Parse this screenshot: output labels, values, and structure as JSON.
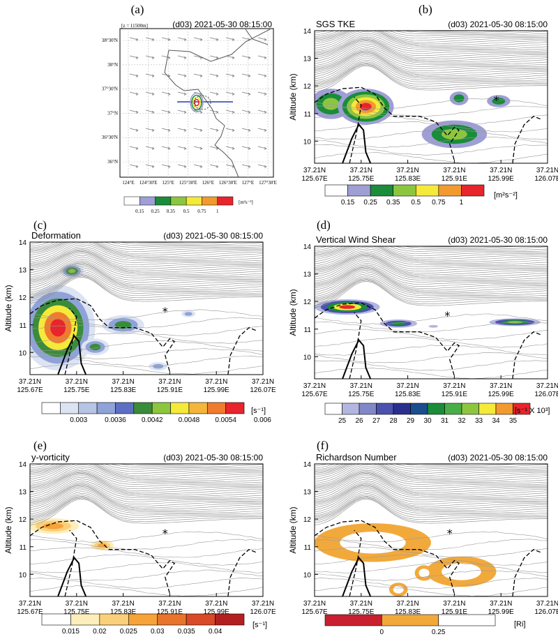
{
  "chart_data": [
    {
      "panel": "(a)",
      "type": "map",
      "header_left": "[z = 11500m]",
      "header_right": "(d03) 2021-05-30 08:15:00",
      "lon_ticks": [
        "124°E",
        "124°30'E",
        "125°E",
        "125°30'E",
        "126°E",
        "126°30'E",
        "127°E",
        "127°30'E"
      ],
      "lat_ticks": [
        "38°30'N",
        "38°N",
        "37°30'N",
        "37°N",
        "36°30'N",
        "36°N"
      ],
      "colorbar": {
        "labels": [
          "0.15",
          "0.25",
          "0.35",
          "0.5",
          "0.75",
          "1"
        ],
        "colors": [
          "#ffffff",
          "#9f9fd6",
          "#1a8c3a",
          "#8cc63f",
          "#f5e93a",
          "#f39a2e",
          "#e8242c"
        ],
        "units": "[m²s⁻²]"
      }
    },
    {
      "panel": "(b)",
      "type": "heatmap",
      "title": "SGS TKE",
      "timestamp": "(d03) 2021-05-30 08:15:00",
      "ylabel": "Altitude (km)",
      "ylim": [
        9.2,
        14
      ],
      "y_ticks": [
        "10",
        "11",
        "12",
        "13",
        "14"
      ],
      "x_ticks": [
        [
          "37.21N",
          "125.67E"
        ],
        [
          "37.21N",
          "125.75E"
        ],
        [
          "37.21N",
          "125.83E"
        ],
        [
          "37.21N",
          "125.91E"
        ],
        [
          "37.21N",
          "125.99E"
        ],
        [
          "37.21N",
          "126.07E"
        ]
      ],
      "marker": {
        "x": 0.78,
        "y": 11.5,
        "symbol": "*"
      },
      "colorbar": {
        "labels": [
          "0.15",
          "0.25",
          "0.35",
          "0.5",
          "0.75",
          "1"
        ],
        "colors": [
          "#ffffff",
          "#9f9fd6",
          "#1a8c3a",
          "#8cc63f",
          "#f5e93a",
          "#f39a2e",
          "#e8242c"
        ],
        "units": "[m²s⁻²]"
      },
      "blobs": [
        {
          "x": 0.07,
          "y": 11.35,
          "rx": 0.09,
          "ry": 0.55,
          "levels": [
            1,
            2,
            3
          ]
        },
        {
          "x": 0.22,
          "y": 11.25,
          "rx": 0.12,
          "ry": 0.65,
          "levels": [
            1,
            2,
            3,
            4,
            5,
            6
          ]
        },
        {
          "x": 0.6,
          "y": 10.25,
          "rx": 0.14,
          "ry": 0.5,
          "levels": [
            1,
            2,
            3
          ]
        },
        {
          "x": 0.62,
          "y": 11.55,
          "rx": 0.04,
          "ry": 0.25,
          "levels": [
            1,
            2
          ]
        },
        {
          "x": 0.79,
          "y": 11.45,
          "rx": 0.05,
          "ry": 0.22,
          "levels": [
            1,
            2
          ]
        }
      ]
    },
    {
      "panel": "(c)",
      "type": "heatmap",
      "title": "Deformation",
      "timestamp": "(d03) 2021-05-30 08:15:00",
      "ylabel": "Altitude (km)",
      "ylim": [
        9.2,
        14
      ],
      "y_ticks": [
        "10",
        "11",
        "12",
        "13",
        "14"
      ],
      "x_ticks": [
        [
          "37.21N",
          "125.67E"
        ],
        [
          "37.21N",
          "125.75E"
        ],
        [
          "37.21N",
          "125.83E"
        ],
        [
          "37.21N",
          "125.91E"
        ],
        [
          "37.21N",
          "125.99E"
        ],
        [
          "37.21N",
          "126.07E"
        ]
      ],
      "marker": {
        "x": 0.58,
        "y": 11.5,
        "symbol": "*"
      },
      "colorbar": {
        "labels": [
          "0.003",
          "0.0036",
          "0.0042",
          "0.0048",
          "0.0054",
          "0.006"
        ],
        "colors": [
          "#ffffff",
          "#dce3f3",
          "#b6c4e6",
          "#8fa3d8",
          "#5d6fc3",
          "#3a8c3a",
          "#8cc63f",
          "#f5e93a",
          "#f5b53a",
          "#f07b2e",
          "#e8242c"
        ],
        "units": "[s⁻¹]"
      },
      "blobs": [
        {
          "x": 0.12,
          "y": 10.9,
          "rx": 0.16,
          "ry": 1.55,
          "levels": [
            1,
            3,
            5,
            7,
            9,
            10
          ]
        },
        {
          "x": 0.18,
          "y": 12.95,
          "rx": 0.05,
          "ry": 0.25,
          "levels": [
            1,
            3,
            5,
            6
          ]
        },
        {
          "x": 0.4,
          "y": 11.0,
          "rx": 0.09,
          "ry": 0.35,
          "levels": [
            1,
            3,
            5
          ]
        },
        {
          "x": 0.28,
          "y": 10.2,
          "rx": 0.06,
          "ry": 0.3,
          "levels": [
            1,
            3,
            5
          ]
        },
        {
          "x": 0.55,
          "y": 9.5,
          "rx": 0.04,
          "ry": 0.15,
          "levels": [
            1,
            3
          ]
        },
        {
          "x": 0.68,
          "y": 11.4,
          "rx": 0.03,
          "ry": 0.12,
          "levels": [
            1,
            3
          ]
        }
      ]
    },
    {
      "panel": "(d)",
      "type": "heatmap",
      "title": "Vertical Wind Shear",
      "timestamp": "(d03) 2021-05-30 08:15:00",
      "ylabel": "Altitude (km)",
      "ylim": [
        9.2,
        14
      ],
      "y_ticks": [
        "10",
        "11",
        "12",
        "13",
        "14"
      ],
      "x_ticks": [
        [
          "37.21N",
          "125.67E"
        ],
        [
          "37.21N",
          "125.75E"
        ],
        [
          "37.21N",
          "125.83E"
        ],
        [
          "37.21N",
          "125.91E"
        ],
        [
          "37.21N",
          "125.99E"
        ],
        [
          "37.21N",
          "126.07E"
        ]
      ],
      "marker": {
        "x": 0.57,
        "y": 11.5,
        "symbol": "*"
      },
      "colorbar": {
        "labels": [
          "25",
          "26",
          "27",
          "28",
          "29",
          "30",
          "31",
          "32",
          "33",
          "34",
          "35"
        ],
        "colors": [
          "#ffffff",
          "#b3b6e0",
          "#8088c8",
          "#4a52ad",
          "#2a2f8f",
          "#1a4e8c",
          "#1a8c3a",
          "#4aae48",
          "#8cc63f",
          "#f5e93a",
          "#f39a2e",
          "#e8242c"
        ],
        "units": "[s⁻¹ X 10³]"
      },
      "blobs": [
        {
          "x": 0.14,
          "y": 11.8,
          "rx": 0.14,
          "ry": 0.28,
          "levels": [
            1,
            3,
            6,
            9,
            11
          ]
        },
        {
          "x": 0.36,
          "y": 11.2,
          "rx": 0.08,
          "ry": 0.15,
          "levels": [
            1,
            3,
            6
          ]
        },
        {
          "x": 0.86,
          "y": 11.25,
          "rx": 0.11,
          "ry": 0.14,
          "levels": [
            1,
            3,
            6,
            8
          ]
        },
        {
          "x": 0.51,
          "y": 11.1,
          "rx": 0.02,
          "ry": 0.05,
          "levels": [
            1
          ]
        }
      ]
    },
    {
      "panel": "(e)",
      "type": "heatmap",
      "title": "y-vorticity",
      "timestamp": "(d03) 2021-05-30 08:15:00",
      "ylabel": "Altitude (km)",
      "ylim": [
        9.2,
        14
      ],
      "y_ticks": [
        "10",
        "11",
        "12",
        "13",
        "14"
      ],
      "x_ticks": [
        [
          "37.21N",
          "125.67E"
        ],
        [
          "37.21N",
          "125.75E"
        ],
        [
          "37.21N",
          "125.83E"
        ],
        [
          "37.21N",
          "125.91E"
        ],
        [
          "37.21N",
          "125.99E"
        ],
        [
          "37.21N",
          "126.07E"
        ]
      ],
      "marker": {
        "x": 0.58,
        "y": 11.5,
        "symbol": "*"
      },
      "colorbar": {
        "labels": [
          "0.015",
          "0.02",
          "0.025",
          "0.03",
          "0.035",
          "0.04"
        ],
        "colors": [
          "#ffffff",
          "#fdeebb",
          "#fbd07a",
          "#f6a339",
          "#e8752b",
          "#d94a28",
          "#b3201f"
        ],
        "units": "[s⁻¹]"
      },
      "blobs": [
        {
          "x": 0.1,
          "y": 11.75,
          "rx": 0.11,
          "ry": 0.28,
          "levels": [
            1,
            2,
            3
          ]
        },
        {
          "x": 0.31,
          "y": 11.05,
          "rx": 0.05,
          "ry": 0.18,
          "levels": [
            1,
            2,
            3
          ]
        }
      ]
    },
    {
      "panel": "(f)",
      "type": "heatmap",
      "title": "Richardson Number",
      "timestamp": "(d03) 2021-05-30 08:15:00",
      "ylabel": "Altitude (km)",
      "ylim": [
        9.2,
        14
      ],
      "y_ticks": [
        "10",
        "11",
        "12",
        "13",
        "14"
      ],
      "x_ticks": [
        [
          "37.21N",
          "125.67E"
        ],
        [
          "37.21N",
          "125.75E"
        ],
        [
          "37.21N",
          "125.83E"
        ],
        [
          "37.21N",
          "125.91E"
        ],
        [
          "37.21N",
          "125.99E"
        ],
        [
          "37.21N",
          "126.07E"
        ]
      ],
      "marker": {
        "x": 0.58,
        "y": 11.5,
        "symbol": "*"
      },
      "colorbar": {
        "labels": [
          "0",
          "0.25"
        ],
        "colors": [
          "#c8202e",
          "#f2a93b",
          "#ffffff"
        ],
        "units": "[Ri]"
      },
      "blobs": [
        {
          "x": 0.25,
          "y": 11.15,
          "rx": 0.25,
          "ry": 0.7,
          "levels": [
            1,
            2
          ]
        },
        {
          "x": 0.63,
          "y": 10.1,
          "rx": 0.15,
          "ry": 0.55,
          "levels": [
            1,
            2
          ]
        },
        {
          "x": 0.47,
          "y": 10.05,
          "rx": 0.04,
          "ry": 0.28,
          "levels": [
            1,
            2
          ]
        },
        {
          "x": 0.36,
          "y": 9.45,
          "rx": 0.04,
          "ry": 0.25,
          "levels": [
            1,
            2
          ]
        }
      ]
    }
  ]
}
